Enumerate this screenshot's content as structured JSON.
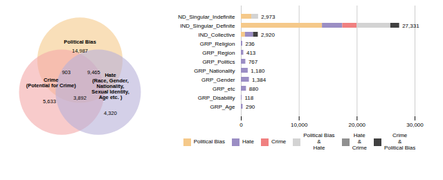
{
  "chart_data": [
    {
      "type": "venn",
      "series": [
        {
          "name": "Political Bias",
          "color": "#F5C98A"
        },
        {
          "name": "Crime\n(Potential for Crime)",
          "color": "#F4A8A8"
        },
        {
          "name": "Hate\n(Race, Gender,\nNationality,\nSexual Identity,\nAge etc. )",
          "color": "#B8B0D8"
        }
      ],
      "regions": [
        [
          0
        ],
        [
          1
        ],
        [
          2
        ],
        [
          0,
          1
        ],
        [
          0,
          2
        ],
        [
          1,
          2
        ]
      ],
      "values": [
        14987,
        5633,
        4320,
        903,
        9465,
        3892
      ],
      "value_labels": [
        "14,987",
        "5,633",
        "4,320",
        "903",
        "9,465",
        "3,892"
      ],
      "data_labels": true
    },
    {
      "type": "bar",
      "orientation": "horizontal",
      "stacked": true,
      "categories": [
        "GRP_Age",
        "GRP_Disability",
        "GRP_etc",
        "GRP_Gender",
        "GRP_Nationality",
        "GRP_Politics",
        "GRP_Region",
        "GRP_Religion",
        "IND_Collective",
        "IND_Singular_Definite",
        "ND_Singular_Indefinite"
      ],
      "series": [
        {
          "name": "Political Bias",
          "color": "#F5C98A",
          "values": [
            0,
            0,
            0,
            0,
            0,
            0,
            0,
            0,
            700,
            14000,
            1800
          ]
        },
        {
          "name": "Hate",
          "color": "#9B8EC4",
          "values": [
            290,
            118,
            880,
            1384,
            1180,
            767,
            413,
            236,
            1400,
            3500,
            0
          ]
        },
        {
          "name": "Crime",
          "color": "#F08080",
          "values": [
            0,
            0,
            0,
            0,
            0,
            0,
            0,
            0,
            0,
            2500,
            0
          ]
        },
        {
          "name": "Political Bias\n&\nHate",
          "color": "#D3D3D3",
          "values": [
            0,
            0,
            0,
            0,
            0,
            0,
            0,
            0,
            0,
            5800,
            1173
          ]
        },
        {
          "name": "Hate\n&\nCrime",
          "color": "#909090",
          "values": [
            0,
            0,
            0,
            0,
            0,
            0,
            0,
            0,
            0,
            0,
            0
          ]
        },
        {
          "name": "Crime\n&\nPolitical Bias",
          "color": "#404040",
          "values": [
            0,
            0,
            0,
            0,
            0,
            0,
            0,
            0,
            820,
            1531,
            0
          ]
        }
      ],
      "totals": [
        290,
        118,
        880,
        1384,
        1180,
        767,
        413,
        236,
        2920,
        27331,
        2973
      ],
      "total_labels": [
        "290",
        "118",
        "880",
        "1,384",
        "1,180",
        "767",
        "413",
        "236",
        "2,920",
        "27,331",
        "2,973"
      ],
      "xlim": [
        0,
        30000
      ],
      "xticks": [
        0,
        {
          "value": 10000,
          "label": "10,000"
        },
        {
          "value": 20000,
          "label": "20,000"
        },
        {
          "value": 30000,
          "label": "30,000"
        }
      ],
      "grid": true,
      "legend": "bottom"
    }
  ]
}
